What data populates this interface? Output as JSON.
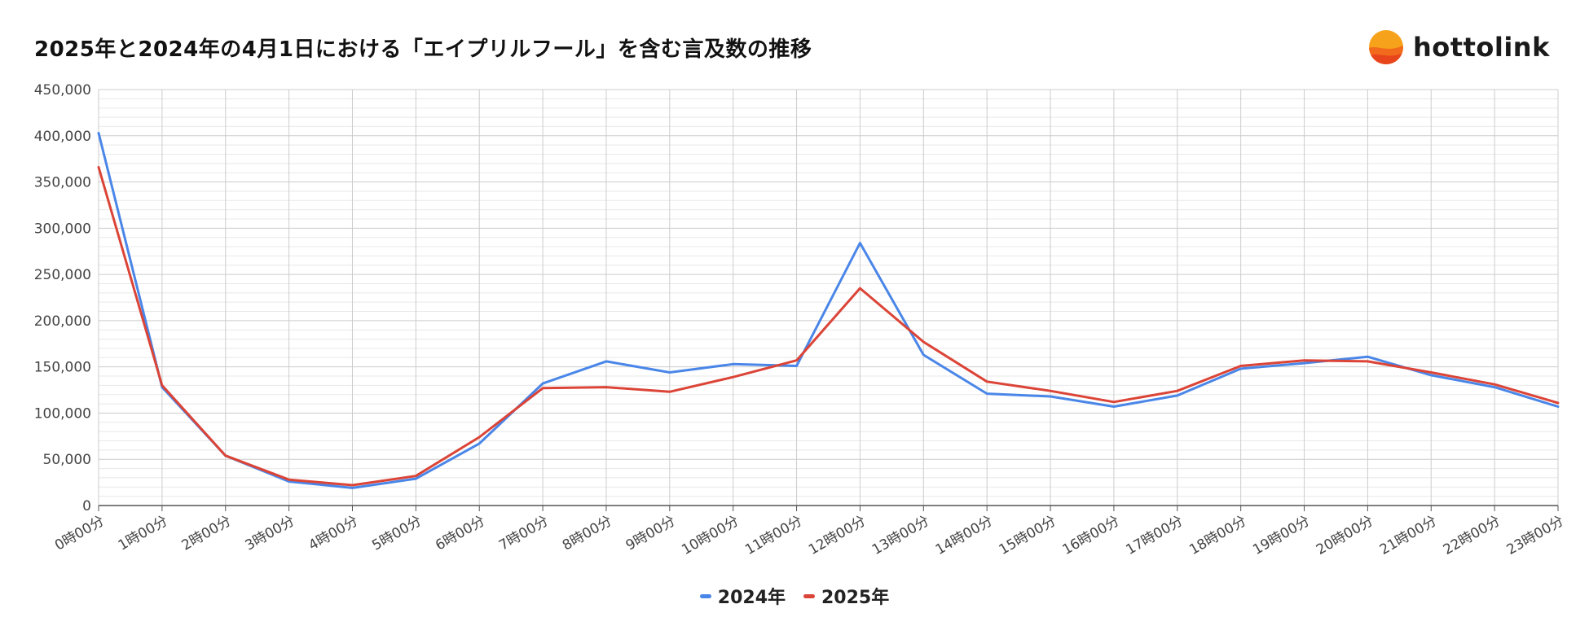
{
  "chart_data": {
    "type": "line",
    "title": "2025年と2024年の4月1日における「エイプリルフール」を含む言及数の推移",
    "xlabel": "",
    "ylabel": "",
    "categories": [
      "0時00分",
      "1時00分",
      "2時00分",
      "3時00分",
      "4時00分",
      "5時00分",
      "6時00分",
      "7時00分",
      "8時00分",
      "9時00分",
      "10時00分",
      "11時00分",
      "12時00分",
      "13時00分",
      "14時00分",
      "15時00分",
      "16時00分",
      "17時00分",
      "18時00分",
      "19時00分",
      "20時00分",
      "21時00分",
      "22時00分",
      "23時00分"
    ],
    "ylim": [
      0,
      450000
    ],
    "yticks": [
      0,
      50000,
      100000,
      150000,
      200000,
      250000,
      300000,
      350000,
      400000,
      450000
    ],
    "ytick_labels": [
      "0",
      "50,000",
      "100,000",
      "150,000",
      "200,000",
      "250,000",
      "300,000",
      "350,000",
      "400,000",
      "450,000"
    ],
    "grid": true,
    "legend_position": "bottom",
    "series": [
      {
        "name": "2024年",
        "color": "#4a86e8",
        "values": [
          403000,
          128000,
          54000,
          26000,
          19000,
          29000,
          67000,
          132000,
          156000,
          144000,
          153000,
          151000,
          284000,
          163000,
          121000,
          118000,
          107000,
          119000,
          148000,
          154000,
          161000,
          141000,
          128000,
          107000
        ]
      },
      {
        "name": "2025年",
        "color": "#db4437",
        "values": [
          366000,
          130000,
          54000,
          28000,
          22000,
          32000,
          74000,
          127000,
          128000,
          123000,
          139000,
          157000,
          235000,
          177000,
          134000,
          124000,
          112000,
          124000,
          151000,
          157000,
          156000,
          144000,
          131000,
          111000
        ]
      }
    ]
  },
  "brand": {
    "name": "hottolink",
    "logo_icon": "orange-sun-logo-icon"
  },
  "colors": {
    "grid_major": "#cccccc",
    "grid_minor": "#e8e8e8",
    "axis": "#555555",
    "tick_text": "#444444"
  }
}
